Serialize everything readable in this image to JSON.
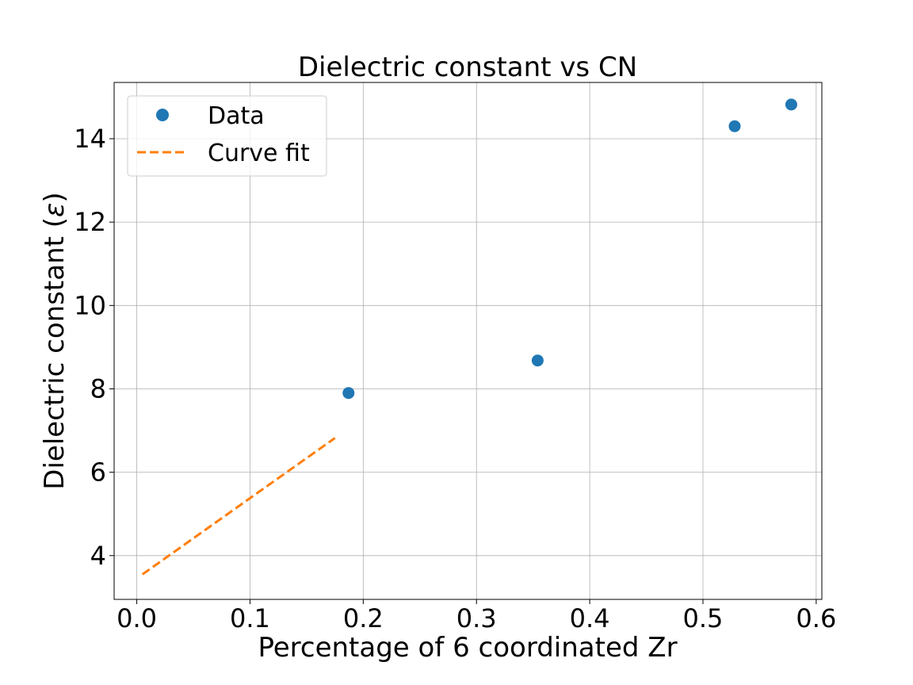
{
  "chart_data": {
    "type": "scatter",
    "title": "Dielectric constant vs CN",
    "xlabel": "Percentage of 6 coordinated Zr",
    "ylabel_prefix": "Dielectric constant (",
    "ylabel_symbol": "ε",
    "ylabel_suffix": ")",
    "xlim": [
      -0.02,
      0.605
    ],
    "ylim": [
      2.95,
      15.35
    ],
    "xticks": [
      0.0,
      0.1,
      0.2,
      0.3,
      0.4,
      0.5,
      0.6
    ],
    "xtick_labels": [
      "0.0",
      "0.1",
      "0.2",
      "0.3",
      "0.4",
      "0.5",
      "0.6"
    ],
    "yticks": [
      4,
      6,
      8,
      10,
      12,
      14
    ],
    "ytick_labels": [
      "4",
      "6",
      "8",
      "10",
      "12",
      "14"
    ],
    "grid": true,
    "legend_position": "top-left",
    "series": [
      {
        "name": "Data",
        "kind": "scatter",
        "color": "#1f77b4",
        "x": [
          0.187,
          0.354,
          0.528,
          0.578
        ],
        "y": [
          7.9,
          8.68,
          14.3,
          14.82
        ]
      },
      {
        "name": "Curve fit",
        "kind": "line",
        "style": "dashed",
        "color": "#ff7f0e",
        "x": [
          0.005,
          0.175
        ],
        "y": [
          3.55,
          6.82
        ]
      }
    ]
  }
}
